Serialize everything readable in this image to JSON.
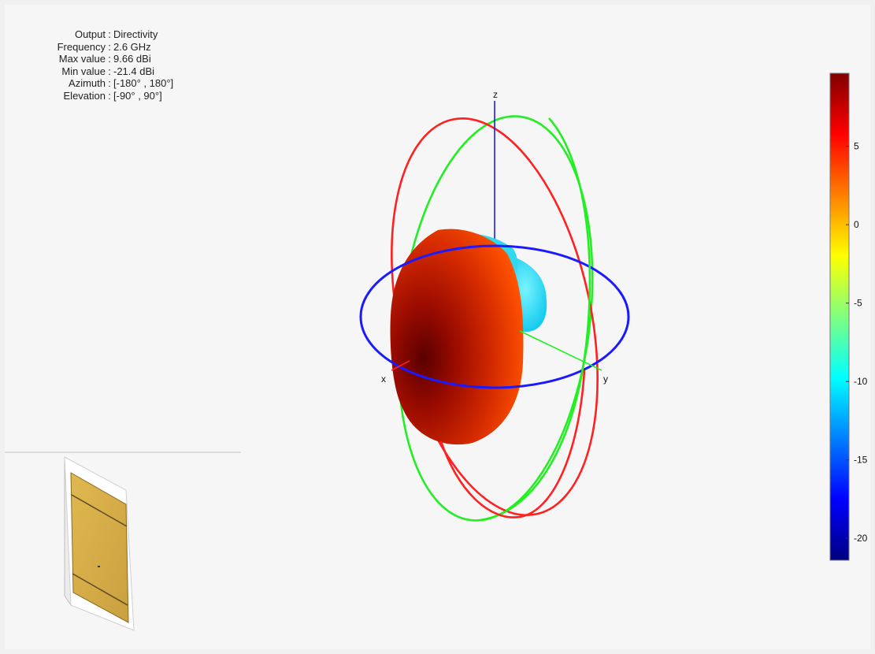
{
  "info": [
    {
      "label": "Output",
      "value": "Directivity"
    },
    {
      "label": "Frequency",
      "value": "2.6 GHz"
    },
    {
      "label": "Max value",
      "value": "9.66 dBi"
    },
    {
      "label": "Min value",
      "value": "-21.4 dBi"
    },
    {
      "label": "Azimuth",
      "value": "[-180° , 180°]"
    },
    {
      "label": "Elevation",
      "value": "[-90° , 90°]"
    }
  ],
  "axes": {
    "x": "x",
    "y": "y",
    "z": "z"
  },
  "colors": {
    "azimuth_ring": "#1a1aff",
    "elevation_xz": "#ff2020",
    "elevation_yz": "#22ee22",
    "patch": "#d9b24a"
  },
  "chart_data": {
    "type": "3d-radiation-pattern",
    "output": "Directivity",
    "frequency_ghz": 2.6,
    "max_dbi": 9.66,
    "min_dbi": -21.4,
    "azimuth_range_deg": [
      -180,
      180
    ],
    "elevation_range_deg": [
      -90,
      90
    ],
    "colorbar": {
      "colormap": "jet",
      "range": [
        -21.4,
        9.66
      ],
      "ticks": [
        5,
        0,
        -5,
        -10,
        -15,
        -20
      ],
      "tick_labels": [
        "5",
        "0",
        "-5",
        "-10",
        "-15",
        "-20"
      ]
    }
  }
}
